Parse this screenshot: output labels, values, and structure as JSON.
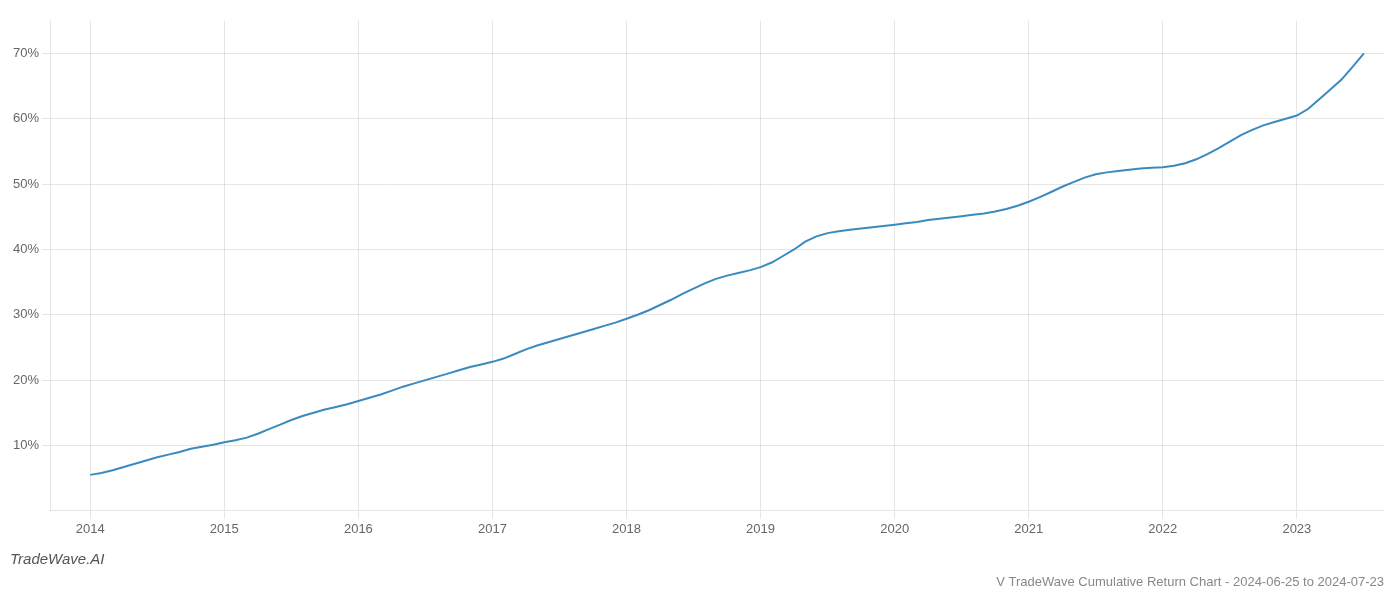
{
  "chart_data": {
    "type": "line",
    "title": "V TradeWave Cumulative Return Chart - 2024-06-25 to 2024-07-23",
    "annotations": [
      "TradeWave.AI"
    ],
    "x": [
      2014.0,
      2014.083,
      2014.167,
      2014.25,
      2014.333,
      2014.417,
      2014.5,
      2014.583,
      2014.667,
      2014.75,
      2014.833,
      2014.917,
      2015.0,
      2015.083,
      2015.167,
      2015.25,
      2015.333,
      2015.417,
      2015.5,
      2015.583,
      2015.667,
      2015.75,
      2015.833,
      2015.917,
      2016.0,
      2016.083,
      2016.167,
      2016.25,
      2016.333,
      2016.417,
      2016.5,
      2016.583,
      2016.667,
      2016.75,
      2016.833,
      2016.917,
      2017.0,
      2017.083,
      2017.167,
      2017.25,
      2017.333,
      2017.417,
      2017.5,
      2017.583,
      2017.667,
      2017.75,
      2017.833,
      2017.917,
      2018.0,
      2018.083,
      2018.167,
      2018.25,
      2018.333,
      2018.417,
      2018.5,
      2018.583,
      2018.667,
      2018.75,
      2018.833,
      2018.917,
      2019.0,
      2019.083,
      2019.167,
      2019.25,
      2019.333,
      2019.417,
      2019.5,
      2019.583,
      2019.667,
      2019.75,
      2019.833,
      2019.917,
      2020.0,
      2020.083,
      2020.167,
      2020.25,
      2020.333,
      2020.417,
      2020.5,
      2020.583,
      2020.667,
      2020.75,
      2020.833,
      2020.917,
      2021.0,
      2021.083,
      2021.167,
      2021.25,
      2021.333,
      2021.417,
      2021.5,
      2021.583,
      2021.667,
      2021.75,
      2021.833,
      2021.917,
      2022.0,
      2022.083,
      2022.167,
      2022.25,
      2022.333,
      2022.417,
      2022.5,
      2022.583,
      2022.667,
      2022.75,
      2022.833,
      2022.917,
      2023.0,
      2023.083,
      2023.167,
      2023.25,
      2023.333,
      2023.417,
      2023.5
    ],
    "values": [
      5.5,
      5.8,
      6.2,
      6.7,
      7.2,
      7.7,
      8.2,
      8.6,
      9.0,
      9.5,
      9.8,
      10.1,
      10.5,
      10.8,
      11.2,
      11.8,
      12.5,
      13.2,
      13.9,
      14.5,
      15.0,
      15.5,
      15.9,
      16.3,
      16.8,
      17.3,
      17.8,
      18.4,
      19.0,
      19.5,
      20.0,
      20.5,
      21.0,
      21.5,
      22.0,
      22.4,
      22.8,
      23.3,
      24.0,
      24.7,
      25.3,
      25.8,
      26.3,
      26.8,
      27.3,
      27.8,
      28.3,
      28.8,
      29.4,
      30.0,
      30.7,
      31.5,
      32.3,
      33.2,
      34.0,
      34.8,
      35.5,
      36.0,
      36.4,
      36.8,
      37.3,
      38.0,
      39.0,
      40.0,
      41.2,
      42.0,
      42.5,
      42.8,
      43.0,
      43.2,
      43.4,
      43.6,
      43.8,
      44.0,
      44.2,
      44.5,
      44.7,
      44.9,
      45.1,
      45.3,
      45.5,
      45.8,
      46.2,
      46.7,
      47.3,
      48.0,
      48.8,
      49.6,
      50.3,
      51.0,
      51.5,
      51.8,
      52.0,
      52.2,
      52.4,
      52.5,
      52.6,
      52.8,
      53.2,
      53.8,
      54.6,
      55.5,
      56.5,
      57.5,
      58.3,
      59.0,
      59.5,
      60.0,
      60.5,
      61.5,
      63.0,
      64.5,
      66.0,
      68.0,
      70.0
    ],
    "color": "#3a8abf",
    "xlim": [
      2013.7,
      2023.65
    ],
    "ylim": [
      0,
      75
    ],
    "xticks": [
      2014,
      2015,
      2016,
      2017,
      2018,
      2019,
      2020,
      2021,
      2022,
      2023
    ],
    "yticks": [
      {
        "value": 10,
        "label": "10%"
      },
      {
        "value": 20,
        "label": "20%"
      },
      {
        "value": 30,
        "label": "30%"
      },
      {
        "value": 40,
        "label": "40%"
      },
      {
        "value": 50,
        "label": "50%"
      },
      {
        "value": 60,
        "label": "60%"
      },
      {
        "value": 70,
        "label": "70%"
      }
    ],
    "grid": true
  }
}
